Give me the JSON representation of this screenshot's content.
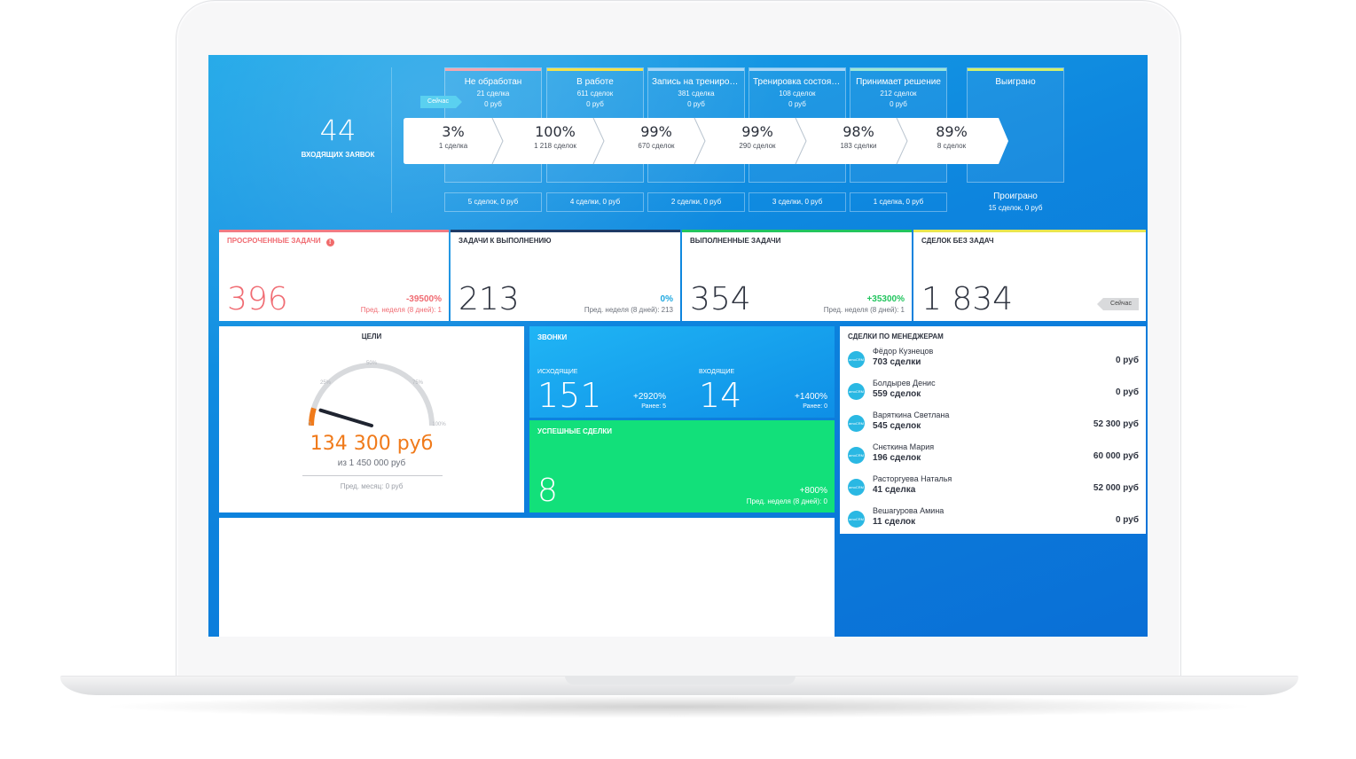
{
  "pipeline": {
    "incoming_count": "44",
    "incoming_label": "входящих заявок",
    "now_label": "Сейчас",
    "stages": [
      {
        "name": "Не обработан",
        "count": "21 сделка",
        "sum": "0 руб",
        "color": "#f4a6b0",
        "conversion": "3%",
        "conv_deals": "1 сделка",
        "lost": "5 сделок, 0 руб"
      },
      {
        "name": "В работе",
        "count": "611 сделок",
        "sum": "0 руб",
        "color": "#f3e14b",
        "conversion": "100%",
        "conv_deals": "1 218 сделок",
        "lost": "4 сделки, 0 руб"
      },
      {
        "name": "Запись на тренировку",
        "count": "381 сделка",
        "sum": "0 руб",
        "color": "#a9d6f5",
        "conversion": "99%",
        "conv_deals": "670 сделок",
        "lost": "2 сделки, 0 руб"
      },
      {
        "name": "Тренировка состоялась",
        "count": "108 сделок",
        "sum": "0 руб",
        "color": "#a9d6f5",
        "conversion": "99%",
        "conv_deals": "290 сделок",
        "lost": "3 сделки, 0 руб"
      },
      {
        "name": "Принимает решение",
        "count": "212 сделок",
        "sum": "0 руб",
        "color": "#9ee7d6",
        "conversion": "98%",
        "conv_deals": "183 сделки",
        "lost": "1 сделка, 0 руб"
      },
      {
        "name": "Выиграно",
        "count": "",
        "sum": "",
        "color": "#d4f06a",
        "conversion": "89%",
        "conv_deals": "8 сделок",
        "lost": ""
      }
    ],
    "lost_final_title": "Проиграно",
    "lost_final_sub": "15 сделок, 0 руб"
  },
  "kpis": [
    {
      "title": "Просроченные задачи",
      "value": "396",
      "delta": "-39500%",
      "prev": "Пред. неделя (8 дней): 1",
      "bar": "#f07b84",
      "value_color": "#f06b72",
      "delta_color": "#f06b72",
      "prev_color": "#f06b72"
    },
    {
      "title": "Задачи к выполнению",
      "value": "213",
      "delta": "0%",
      "prev": "Пред. неделя (8 дней): 213",
      "bar": "#1d3a66",
      "value_color": "#2f3440",
      "delta_color": "#1ea8e0",
      "prev_color": "#6b707a"
    },
    {
      "title": "Выполненные задачи",
      "value": "354",
      "delta": "+35300%",
      "prev": "Пред. неделя (8 дней): 1",
      "bar": "#22c55e",
      "value_color": "#2f3440",
      "delta_color": "#22c55e",
      "prev_color": "#6b707a"
    },
    {
      "title": "Сделок без задач",
      "value": "1 834",
      "delta": "",
      "prev": "",
      "bar": "#e9e64f",
      "value_color": "#2f3440",
      "delta_color": "#2f3440",
      "prev_color": "#6b707a",
      "now": "Сейчас"
    }
  ],
  "goals": {
    "title": "Цели",
    "value": "134 300 руб",
    "of": "из 1 450 000 руб",
    "prev": "Пред. месяц: 0 руб",
    "gauge_ticks": [
      "0",
      "25%",
      "50%",
      "75%",
      "100%"
    ],
    "fraction": 0.093
  },
  "calls": {
    "title": "Звонки",
    "outgoing_label": "Исходящие",
    "outgoing_value": "151",
    "outgoing_delta": "+2920%",
    "outgoing_earlier": "Ранее: 5",
    "incoming_label": "Входящие",
    "incoming_value": "14",
    "incoming_delta": "+1400%",
    "incoming_earlier": "Ранее: 0"
  },
  "wins": {
    "title": "Успешные сделки",
    "value": "8",
    "delta": "+800%",
    "prev": "Пред. неделя (8 дней): 0"
  },
  "managers": {
    "title": "Сделки по менеджерам",
    "avatar_text": "amoCRM",
    "items": [
      {
        "name": "Фёдор Кузнецов",
        "deals": "703 сделки",
        "sum": "0 руб"
      },
      {
        "name": "Болдырев Денис",
        "deals": "559 сделок",
        "sum": "0 руб"
      },
      {
        "name": "Варяткина Светлана",
        "deals": "545 сделок",
        "sum": "52 300 руб"
      },
      {
        "name": "Снєткина Мария",
        "deals": "196 сделок",
        "sum": "60 000 руб"
      },
      {
        "name": "Расторгуева Наталья",
        "deals": "41 сделка",
        "sum": "52 000 руб"
      },
      {
        "name": "Вешагурова Амина",
        "deals": "11 сделок",
        "sum": "0 руб"
      }
    ]
  }
}
